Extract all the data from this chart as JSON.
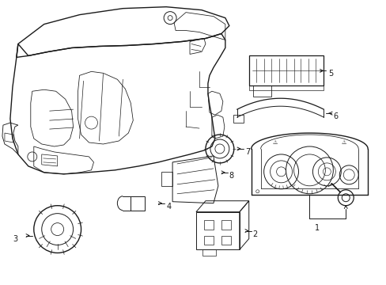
{
  "bg_color": "#ffffff",
  "line_color": "#1a1a1a",
  "lw": 0.7,
  "fig_width": 4.89,
  "fig_height": 3.6,
  "dpi": 100,
  "label_fontsize": 7.0
}
